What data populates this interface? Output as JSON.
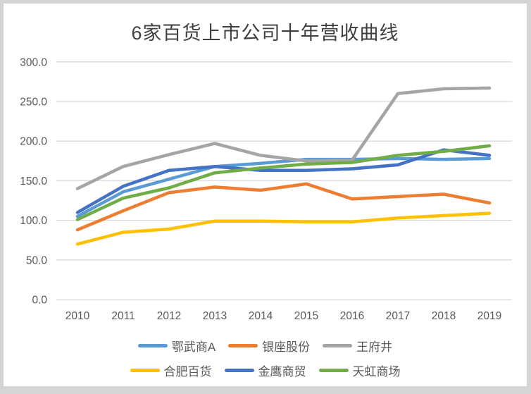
{
  "page": {
    "frame_color": "#d5d5d5",
    "panel_color": "#ffffff"
  },
  "style": {
    "grid_color": "#d9d9d9",
    "axis_text_color": "#595959",
    "title_color": "#404040"
  },
  "chart_data": {
    "type": "line",
    "title": "6家百货上市公司十年营收曲线",
    "x": [
      "2010",
      "2011",
      "2012",
      "2013",
      "2014",
      "2015",
      "2016",
      "2017",
      "2018",
      "2019"
    ],
    "series": [
      {
        "name": "鄂武商A",
        "color": "#5B9BD5",
        "values": [
          105,
          136,
          152,
          168,
          172,
          177,
          177,
          178,
          177,
          178
        ]
      },
      {
        "name": "银座股份",
        "color": "#ED7D31",
        "values": [
          88,
          112,
          135,
          142,
          138,
          146,
          127,
          130,
          133,
          122
        ]
      },
      {
        "name": "王府井",
        "color": "#A5A5A5",
        "values": [
          140,
          168,
          183,
          197,
          182,
          175,
          176,
          260,
          266,
          267
        ]
      },
      {
        "name": "合肥百货",
        "color": "#FFC000",
        "values": [
          70,
          85,
          89,
          99,
          99,
          98,
          98,
          103,
          106,
          109
        ]
      },
      {
        "name": "金鹰商贸",
        "color": "#4472C4",
        "values": [
          110,
          143,
          163,
          168,
          163,
          163,
          165,
          170,
          189,
          182
        ]
      },
      {
        "name": "天虹商场",
        "color": "#70AD47",
        "values": [
          101,
          128,
          141,
          160,
          166,
          171,
          173,
          182,
          187,
          194
        ]
      }
    ],
    "ylim": [
      0,
      300
    ],
    "ytick_step": 50,
    "ytick_labels": [
      "0.0",
      "50.0",
      "100.0",
      "150.0",
      "200.0",
      "250.0",
      "300.0"
    ],
    "xlabel": "",
    "ylabel": "",
    "grid": true,
    "legend_position": "bottom",
    "legend_rows": [
      [
        "鄂武商A",
        "银座股份",
        "王府井"
      ],
      [
        "合肥百货",
        "金鹰商贸",
        "天虹商场"
      ]
    ]
  }
}
